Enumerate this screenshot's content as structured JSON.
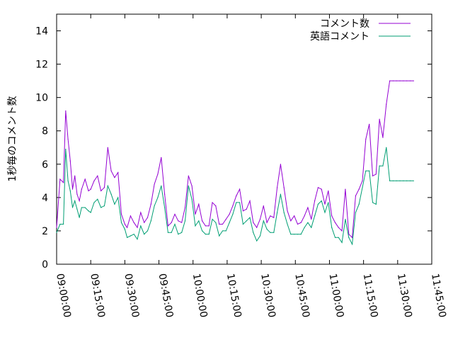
{
  "chart_data": {
    "type": "line",
    "ylabel": "1秒毎のコメント数",
    "xlabel": "",
    "title": "",
    "ylim": [
      0,
      15
    ],
    "xlim": [
      "09:00:00",
      "11:45:00"
    ],
    "y_ticks": [
      "0",
      "2",
      "4",
      "6",
      "8",
      "10",
      "12",
      "14"
    ],
    "x_ticks": [
      "09:00:00",
      "09:15:00",
      "09:30:00",
      "09:45:00",
      "10:00:00",
      "10:15:00",
      "10:30:00",
      "10:45:00",
      "11:00:00",
      "11:15:00",
      "11:30:00",
      "11:45:00"
    ],
    "grid": false,
    "legend": "top-right",
    "series": [
      {
        "name": "コメント数",
        "color": "#9400d3",
        "x": [
          "09:00:00",
          "09:01:30",
          "09:03:00",
          "09:04:00",
          "09:05:00",
          "09:06:00",
          "09:07:00",
          "09:08:00",
          "09:09:00",
          "09:10:00",
          "09:11:00",
          "09:12:30",
          "09:14:00",
          "09:15:00",
          "09:16:30",
          "09:18:00",
          "09:19:30",
          "09:21:00",
          "09:22:30",
          "09:24:00",
          "09:25:30",
          "09:27:00",
          "09:28:30",
          "09:30:00",
          "09:31:00",
          "09:32:30",
          "09:34:00",
          "09:35:30",
          "09:37:00",
          "09:38:30",
          "09:40:00",
          "09:41:30",
          "09:43:00",
          "09:44:30",
          "09:46:00",
          "09:47:30",
          "09:49:00",
          "09:50:30",
          "09:52:00",
          "09:53:30",
          "09:55:00",
          "09:56:30",
          "09:58:00",
          "09:59:30",
          "10:01:00",
          "10:02:30",
          "10:04:00",
          "10:05:30",
          "10:07:00",
          "10:08:30",
          "10:10:00",
          "10:11:30",
          "10:13:00",
          "10:14:30",
          "10:16:00",
          "10:17:30",
          "10:19:00",
          "10:20:30",
          "10:22:00",
          "10:23:30",
          "10:25:00",
          "10:26:30",
          "10:28:00",
          "10:29:30",
          "10:31:00",
          "10:32:30",
          "10:34:00",
          "10:35:30",
          "10:37:00",
          "10:38:30",
          "10:40:00",
          "10:41:30",
          "10:43:00",
          "10:44:30",
          "10:46:00",
          "10:47:30",
          "10:49:00",
          "10:50:30",
          "10:52:00",
          "10:53:30",
          "10:55:00",
          "10:56:30",
          "10:58:00",
          "10:59:30",
          "11:01:00",
          "11:02:30",
          "11:04:00",
          "11:05:30",
          "11:07:00",
          "11:08:30",
          "11:10:00",
          "11:11:30",
          "11:13:00",
          "11:14:30",
          "11:16:00",
          "11:17:30",
          "11:19:00",
          "11:20:30",
          "11:22:00",
          "11:23:30",
          "11:25:00",
          "11:26:30",
          "11:28:00",
          "11:29:30",
          "11:31:00",
          "11:32:30",
          "11:34:00",
          "11:35:30",
          "11:37:00"
        ],
        "values": [
          2.2,
          5.1,
          4.9,
          9.2,
          7.5,
          6.2,
          4.5,
          5.3,
          4.2,
          3.8,
          4.5,
          5.1,
          4.4,
          4.5,
          5.0,
          5.3,
          4.4,
          4.6,
          7.0,
          5.6,
          5.2,
          5.5,
          3.0,
          2.4,
          2.2,
          2.9,
          2.5,
          2.2,
          3.1,
          2.5,
          2.8,
          3.6,
          4.8,
          5.4,
          6.4,
          4.2,
          2.3,
          2.5,
          3.0,
          2.6,
          2.5,
          3.4,
          5.3,
          4.7,
          3.0,
          3.6,
          2.6,
          2.3,
          2.3,
          3.7,
          3.5,
          2.4,
          2.4,
          2.7,
          3.0,
          3.5,
          4.1,
          4.5,
          3.2,
          3.3,
          3.8,
          2.5,
          2.2,
          2.7,
          3.5,
          2.5,
          2.9,
          2.8,
          4.6,
          6.0,
          4.6,
          3.2,
          2.6,
          2.9,
          2.4,
          2.5,
          2.9,
          3.4,
          2.7,
          3.8,
          4.6,
          4.5,
          3.6,
          4.4,
          2.9,
          2.5,
          2.2,
          2.0,
          4.5,
          1.8,
          1.6,
          4.1,
          4.5,
          5.0,
          7.5,
          8.4,
          5.3,
          5.4,
          8.7,
          7.6,
          9.6,
          11.0,
          11.0,
          11.0,
          11.0,
          11.0,
          11.0,
          11.0,
          11.0
        ]
      },
      {
        "name": "英語コメント",
        "color": "#009e73",
        "x": [
          "09:00:00",
          "09:01:30",
          "09:03:00",
          "09:04:00",
          "09:05:00",
          "09:06:00",
          "09:07:00",
          "09:08:00",
          "09:09:00",
          "09:10:00",
          "09:11:00",
          "09:12:30",
          "09:14:00",
          "09:15:00",
          "09:16:30",
          "09:18:00",
          "09:19:30",
          "09:21:00",
          "09:22:30",
          "09:24:00",
          "09:25:30",
          "09:27:00",
          "09:28:30",
          "09:30:00",
          "09:31:00",
          "09:32:30",
          "09:34:00",
          "09:35:30",
          "09:37:00",
          "09:38:30",
          "09:40:00",
          "09:41:30",
          "09:43:00",
          "09:44:30",
          "09:46:00",
          "09:47:30",
          "09:49:00",
          "09:50:30",
          "09:52:00",
          "09:53:30",
          "09:55:00",
          "09:56:30",
          "09:58:00",
          "09:59:30",
          "10:01:00",
          "10:02:30",
          "10:04:00",
          "10:05:30",
          "10:07:00",
          "10:08:30",
          "10:10:00",
          "10:11:30",
          "10:13:00",
          "10:14:30",
          "10:16:00",
          "10:17:30",
          "10:19:00",
          "10:20:30",
          "10:22:00",
          "10:23:30",
          "10:25:00",
          "10:26:30",
          "10:28:00",
          "10:29:30",
          "10:31:00",
          "10:32:30",
          "10:34:00",
          "10:35:30",
          "10:37:00",
          "10:38:30",
          "10:40:00",
          "10:41:30",
          "10:43:00",
          "10:44:30",
          "10:46:00",
          "10:47:30",
          "10:49:00",
          "10:50:30",
          "10:52:00",
          "10:53:30",
          "10:55:00",
          "10:56:30",
          "10:58:00",
          "10:59:30",
          "11:01:00",
          "11:02:30",
          "11:04:00",
          "11:05:30",
          "11:07:00",
          "11:08:30",
          "11:10:00",
          "11:11:30",
          "11:13:00",
          "11:14:30",
          "11:16:00",
          "11:17:30",
          "11:19:00",
          "11:20:30",
          "11:22:00",
          "11:23:30",
          "11:25:00",
          "11:26:30",
          "11:28:00",
          "11:29:30",
          "11:31:00",
          "11:32:30",
          "11:34:00",
          "11:35:30",
          "11:37:00"
        ],
        "values": [
          1.9,
          2.4,
          2.4,
          6.9,
          5.0,
          4.4,
          3.4,
          3.8,
          3.3,
          2.8,
          3.4,
          3.4,
          3.2,
          3.1,
          3.7,
          3.9,
          3.4,
          3.5,
          4.7,
          4.2,
          3.6,
          4.0,
          2.5,
          2.1,
          1.6,
          1.7,
          1.8,
          1.5,
          2.3,
          1.8,
          2.0,
          2.6,
          3.5,
          4.0,
          4.7,
          3.4,
          1.9,
          1.9,
          2.4,
          1.8,
          1.9,
          2.6,
          4.7,
          3.9,
          2.3,
          2.6,
          2.0,
          1.8,
          1.8,
          2.7,
          2.5,
          1.7,
          2.0,
          2.0,
          2.5,
          3.0,
          3.7,
          3.7,
          2.4,
          2.6,
          2.8,
          1.9,
          1.4,
          1.7,
          2.6,
          2.1,
          1.9,
          1.9,
          3.1,
          4.2,
          3.1,
          2.4,
          1.8,
          1.8,
          1.8,
          1.8,
          2.2,
          2.5,
          2.2,
          2.9,
          3.6,
          3.8,
          3.1,
          3.7,
          2.2,
          1.6,
          1.6,
          1.3,
          2.7,
          1.6,
          1.2,
          3.1,
          3.6,
          4.6,
          5.6,
          5.6,
          3.7,
          3.6,
          5.9,
          5.9,
          7.0,
          5.0,
          5.0,
          5.0,
          5.0,
          5.0,
          5.0,
          5.0,
          5.0
        ]
      }
    ]
  }
}
